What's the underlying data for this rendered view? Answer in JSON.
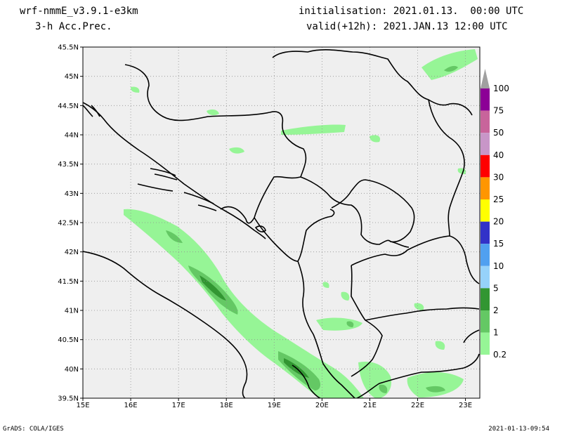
{
  "header": {
    "model": "wrf-nmmE_v3.9.1-e3km",
    "field": "3-h Acc.Prec.",
    "init": "initialisation: 2021.01.13.  00:00 UTC",
    "valid": "valid(+12h): 2021.JAN.13 12:00 UTC"
  },
  "footer": {
    "left": "GrADS: COLA/IGES",
    "right": "2021-01-13-09:54"
  },
  "map": {
    "lon_range": [
      15,
      23.3
    ],
    "lat_range": [
      39.5,
      45.5
    ],
    "lat_ticks": [
      "45.5N",
      "45N",
      "44.5N",
      "44N",
      "43.5N",
      "43N",
      "42.5N",
      "42N",
      "41.5N",
      "41N",
      "40.5N",
      "40N",
      "39.5N"
    ],
    "lon_ticks": [
      "15E",
      "16E",
      "17E",
      "18E",
      "19E",
      "20E",
      "21E",
      "22E",
      "23E"
    ],
    "background_color": "#efefef",
    "grid": true
  },
  "colorbar": {
    "labels": [
      "100",
      "75",
      "50",
      "40",
      "30",
      "25",
      "20",
      "15",
      "10",
      "5",
      "2",
      "1",
      "0.2"
    ],
    "colors": [
      "#a0a0a0",
      "#8c0096",
      "#c8649b",
      "#c896c8",
      "#ff0000",
      "#ff9600",
      "#ffff00",
      "#3232c8",
      "#50a0f0",
      "#96d2fa",
      "#329632",
      "#64c864",
      "#96f596",
      "#ffffff"
    ]
  },
  "precip_levels": {
    "light": "#96f596",
    "moderate": "#64c864",
    "heavy": "#329632"
  }
}
